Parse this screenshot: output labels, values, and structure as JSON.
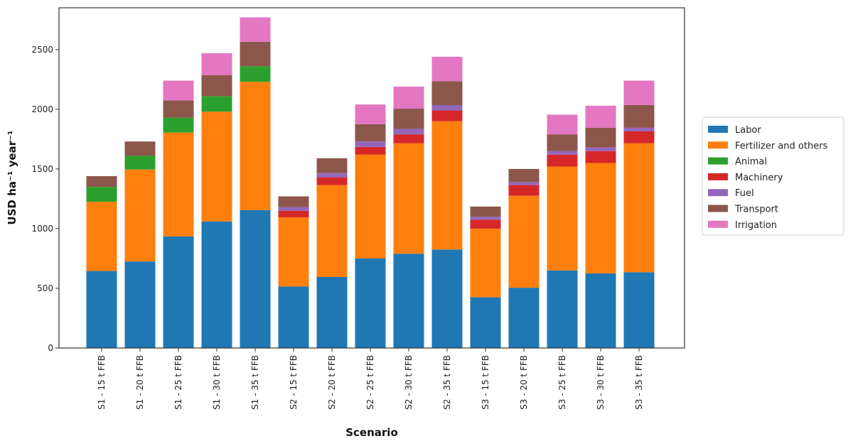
{
  "chart_data": {
    "type": "bar",
    "stacked": true,
    "title": "",
    "xlabel": "Scenario",
    "ylabel": "USD ha⁻¹ year⁻¹",
    "ylim": [
      0,
      2850
    ],
    "yticks": [
      0,
      500,
      1000,
      1500,
      2000,
      2500
    ],
    "grid": false,
    "legend_position": "right",
    "categories": [
      "S1 - 15 t FFB",
      "S1 - 20 t FFB",
      "S1 - 25 t FFB",
      "S1 - 30 t FFB",
      "S1 - 35 t FFB",
      "S2 - 15 t FFB",
      "S2 - 20 t FFB",
      "S2 - 25 t FFB",
      "S2 - 30 t FFB",
      "S2 - 35 t FFB",
      "S3 - 15 t FFB",
      "S3 - 20 t FFB",
      "S3 - 25 t FFB",
      "S3 - 30 t FFB",
      "S3 - 35 t FFB"
    ],
    "series": [
      {
        "name": "Labor",
        "color": "#1f77b4",
        "values": [
          645,
          725,
          935,
          1060,
          1155,
          515,
          595,
          750,
          790,
          825,
          425,
          505,
          650,
          625,
          635
        ]
      },
      {
        "name": "Fertilizer and others",
        "color": "#ff7f0e",
        "values": [
          580,
          770,
          870,
          920,
          1075,
          580,
          770,
          870,
          925,
          1075,
          575,
          770,
          870,
          925,
          1080
        ]
      },
      {
        "name": "Animal",
        "color": "#2ca02c",
        "values": [
          125,
          115,
          125,
          130,
          130,
          0,
          0,
          0,
          0,
          0,
          0,
          0,
          0,
          0,
          0
        ]
      },
      {
        "name": "Machinery",
        "color": "#d62728",
        "values": [
          0,
          0,
          0,
          0,
          0,
          55,
          65,
          65,
          75,
          90,
          75,
          90,
          100,
          100,
          100
        ]
      },
      {
        "name": "Fuel",
        "color": "#9467bd",
        "values": [
          0,
          0,
          0,
          0,
          0,
          30,
          35,
          45,
          45,
          45,
          25,
          25,
          30,
          30,
          30
        ]
      },
      {
        "name": "Transport",
        "color": "#8c564b",
        "values": [
          90,
          120,
          145,
          175,
          205,
          90,
          125,
          145,
          170,
          200,
          85,
          110,
          140,
          165,
          190
        ]
      },
      {
        "name": "Irrigation",
        "color": "#e377c2",
        "values": [
          0,
          0,
          165,
          185,
          205,
          0,
          0,
          165,
          185,
          205,
          0,
          0,
          165,
          185,
          205
        ]
      }
    ]
  }
}
